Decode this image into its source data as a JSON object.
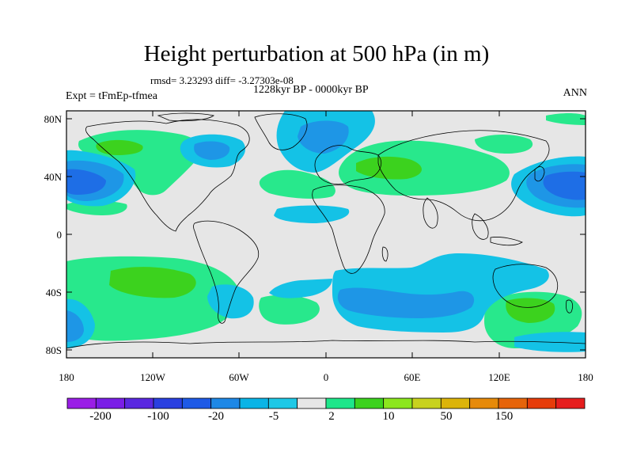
{
  "header": {
    "title": "Height perturbation at 500 hPa (in m)",
    "stats": "rmsd= 3.23293 diff= -3.27303e-08",
    "period": "1228kyr BP - 0000kyr BP",
    "experiment": "Expt = tFmEp-tfmea",
    "season": "ANN"
  },
  "axes": {
    "lat_labels": [
      "80N",
      "40N",
      "0",
      "40S",
      "80S"
    ],
    "lon_labels": [
      "180",
      "120W",
      "60W",
      "0",
      "60E",
      "120E",
      "180"
    ]
  },
  "colorbar": {
    "labels": [
      "-200",
      "-100",
      "-20",
      "-5",
      "2",
      "10",
      "50",
      "150"
    ],
    "colors": [
      "#9a1ee6",
      "#7a1ee6",
      "#5a28e0",
      "#2a40e0",
      "#1e5ae6",
      "#1e88e6",
      "#0ab4e6",
      "#1ec8e6",
      "#e6e6e6",
      "#1ee68a",
      "#3cd21e",
      "#8ce61e",
      "#c8d21e",
      "#dcb40a",
      "#e68a0a",
      "#e6640a",
      "#e63c0a",
      "#e61e1e"
    ]
  },
  "palette": {
    "light_blue": "#14c2e6",
    "mid_blue": "#1e96e6",
    "dark_blue": "#1e6ee6",
    "green": "#28e88c",
    "dark_green": "#3cd21e",
    "yellow_green": "#9be61e",
    "neutral": "#e6e6e6",
    "coastline": "#000000"
  }
}
